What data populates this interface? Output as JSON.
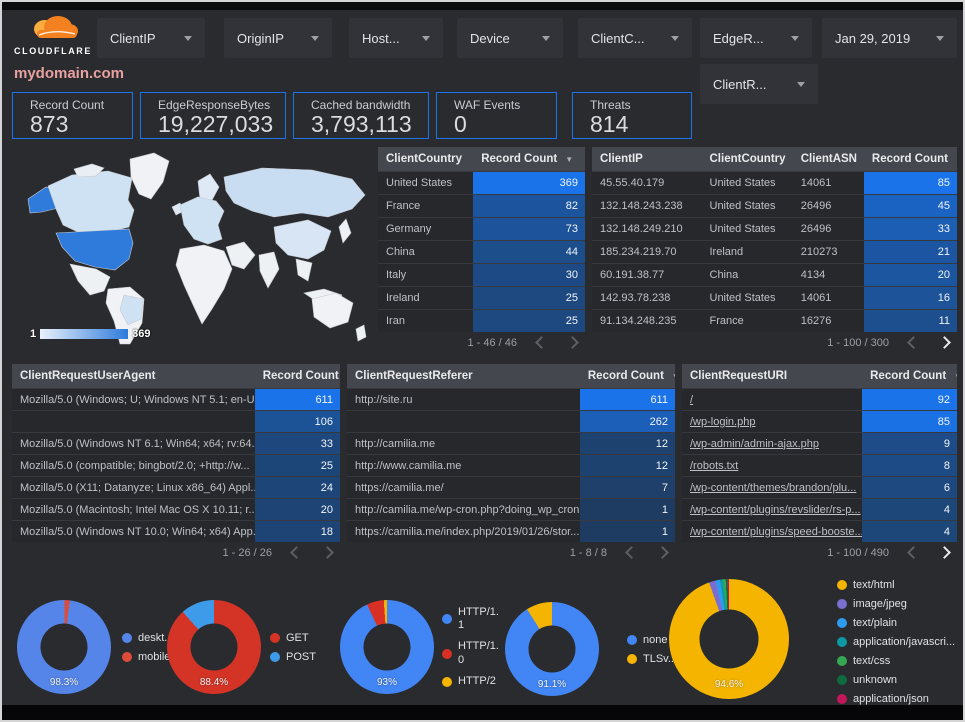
{
  "brand": {
    "name": "CLOUDFLARE"
  },
  "header": {
    "filters": [
      {
        "label": "ClientIP"
      },
      {
        "label": "OriginIP"
      },
      {
        "label": "Host..."
      },
      {
        "label": "Device"
      },
      {
        "label": "ClientC..."
      },
      {
        "label": "EdgeR..."
      },
      {
        "label": "ClientR..."
      }
    ],
    "date_filter": {
      "label": "Jan 29, 2019"
    }
  },
  "page_title": "mydomain.com",
  "scorecards": [
    {
      "label": "Record Count",
      "value": "873"
    },
    {
      "label": "EdgeResponseBytes",
      "value": "19,227,033"
    },
    {
      "label": "Cached bandwidth",
      "value": "3,793,113"
    },
    {
      "label": "WAF Events",
      "value": "0"
    },
    {
      "label": "Threats",
      "value": "814"
    }
  ],
  "map": {
    "legend_min": "1",
    "legend_max": "369"
  },
  "tables": {
    "client_country": {
      "columns": [
        "ClientCountry",
        "Record Count"
      ],
      "rows": [
        [
          "United States",
          369
        ],
        [
          "France",
          82
        ],
        [
          "Germany",
          73
        ],
        [
          "China",
          44
        ],
        [
          "Italy",
          30
        ],
        [
          "Ireland",
          25
        ],
        [
          "Iran",
          25
        ]
      ],
      "max": 369,
      "pagination": "1 - 46 / 46",
      "prev_enabled": false,
      "next_enabled": false,
      "links": false
    },
    "client_ip": {
      "columns": [
        "ClientIP",
        "ClientCountry",
        "ClientASN",
        "Record Count"
      ],
      "rows": [
        [
          "45.55.40.179",
          "United States",
          "14061",
          85
        ],
        [
          "132.148.243.238",
          "United States",
          "26496",
          45
        ],
        [
          "132.148.249.210",
          "United States",
          "26496",
          33
        ],
        [
          "185.234.219.70",
          "Ireland",
          "210273",
          21
        ],
        [
          "60.191.38.77",
          "China",
          "4134",
          20
        ],
        [
          "142.93.78.238",
          "United States",
          "14061",
          16
        ],
        [
          "91.134.248.235",
          "France",
          "16276",
          11
        ]
      ],
      "max": 85,
      "pagination": "1 - 100 / 300",
      "prev_enabled": false,
      "next_enabled": true,
      "links": false
    },
    "user_agent": {
      "columns": [
        "ClientRequestUserAgent",
        "Record Count"
      ],
      "rows": [
        [
          "Mozilla/5.0 (Windows; U; Windows NT 5.1; en-U...",
          611
        ],
        [
          "",
          106
        ],
        [
          "Mozilla/5.0 (Windows NT 6.1; Win64; x64; rv:64...",
          33
        ],
        [
          "Mozilla/5.0 (compatible; bingbot/2.0; +http://w...",
          25
        ],
        [
          "Mozilla/5.0 (X11; Datanyze; Linux x86_64) Appl...",
          24
        ],
        [
          "Mozilla/5.0 (Macintosh; Intel Mac OS X 10.11; r...",
          20
        ],
        [
          "Mozilla/5.0 (Windows NT 10.0; Win64; x64) App...",
          18
        ]
      ],
      "max": 611,
      "pagination": "1 - 26 / 26",
      "prev_enabled": false,
      "next_enabled": false,
      "links": false
    },
    "referer": {
      "columns": [
        "ClientRequestReferer",
        "Record Count"
      ],
      "rows": [
        [
          "http://site.ru",
          611
        ],
        [
          "",
          262
        ],
        [
          "http://camilia.me",
          12
        ],
        [
          "http://www.camilia.me",
          12
        ],
        [
          "https://camilia.me/",
          7
        ],
        [
          "http://camilia.me/wp-cron.php?doing_wp_cron...",
          1
        ],
        [
          "https://camilia.me/index.php/2019/01/26/stor...",
          1
        ]
      ],
      "max": 611,
      "pagination": "1 - 8 / 8",
      "prev_enabled": false,
      "next_enabled": false,
      "links": false
    },
    "uri": {
      "columns": [
        "ClientRequestURI",
        "Record Count"
      ],
      "rows": [
        [
          "/",
          92
        ],
        [
          "/wp-login.php",
          85
        ],
        [
          "/wp-admin/admin-ajax.php",
          9
        ],
        [
          "/robots.txt",
          8
        ],
        [
          "/wp-content/themes/brandon/plu...",
          6
        ],
        [
          "/wp-content/plugins/revslider/rs-p...",
          4
        ],
        [
          "/wp-content/plugins/speed-booste...",
          4
        ]
      ],
      "max": 92,
      "pagination": "1 - 100 / 490",
      "prev_enabled": false,
      "next_enabled": true,
      "links": true
    }
  },
  "donuts": [
    {
      "name": "device-type",
      "label": "98.3%",
      "from_deg": 7,
      "slices": [
        {
          "name": "deskt...",
          "color": "#5585e8",
          "pct": 98.3
        },
        {
          "name": "mobile",
          "color": "#dd4b39",
          "pct": 1.7
        }
      ]
    },
    {
      "name": "http-method",
      "label": "88.4%",
      "from_deg": 0,
      "slices": [
        {
          "name": "GET",
          "color": "#d33426",
          "pct": 88.4
        },
        {
          "name": "POST",
          "color": "#3d9be9",
          "pct": 11.6
        }
      ]
    },
    {
      "name": "http-version",
      "label": "93%",
      "from_deg": 0,
      "slices": [
        {
          "name": "HTTP/1.1",
          "color": "#4285f4",
          "pct": 93
        },
        {
          "name": "HTTP/1.0",
          "color": "#d93025",
          "pct": 5.9
        },
        {
          "name": "HTTP/2",
          "color": "#f4b400",
          "pct": 1.1
        }
      ]
    },
    {
      "name": "tls-version",
      "label": "91.1%",
      "from_deg": 0,
      "slices": [
        {
          "name": "none",
          "color": "#4285f4",
          "pct": 91.1
        },
        {
          "name": "TLSv...",
          "color": "#f4b400",
          "pct": 8.9
        }
      ]
    },
    {
      "name": "content-type",
      "label": "94.6%",
      "from_deg": 0,
      "slices": [
        {
          "name": "text/html",
          "color": "#f4b400",
          "pct": 94.6
        },
        {
          "name": "image/jpeg",
          "color": "#7a6fd0",
          "pct": 1.8
        },
        {
          "name": "text/plain",
          "color": "#2f9bf0",
          "pct": 1.2
        },
        {
          "name": "application/javascri...",
          "color": "#0b9aa3",
          "pct": 0.8
        },
        {
          "name": "text/css",
          "color": "#34a853",
          "pct": 0.7
        },
        {
          "name": "unknown",
          "color": "#0d6b3f",
          "pct": 0.5
        },
        {
          "name": "application/json",
          "color": "#c2185b",
          "pct": 0.4
        }
      ]
    }
  ],
  "icons": {
    "sort_asc": "▲",
    "sort_desc": "▼"
  },
  "colors": {
    "accent_blue": "#1a73e8",
    "heat_low": "#1e3a5c",
    "heat_high": "#1a73e8"
  }
}
